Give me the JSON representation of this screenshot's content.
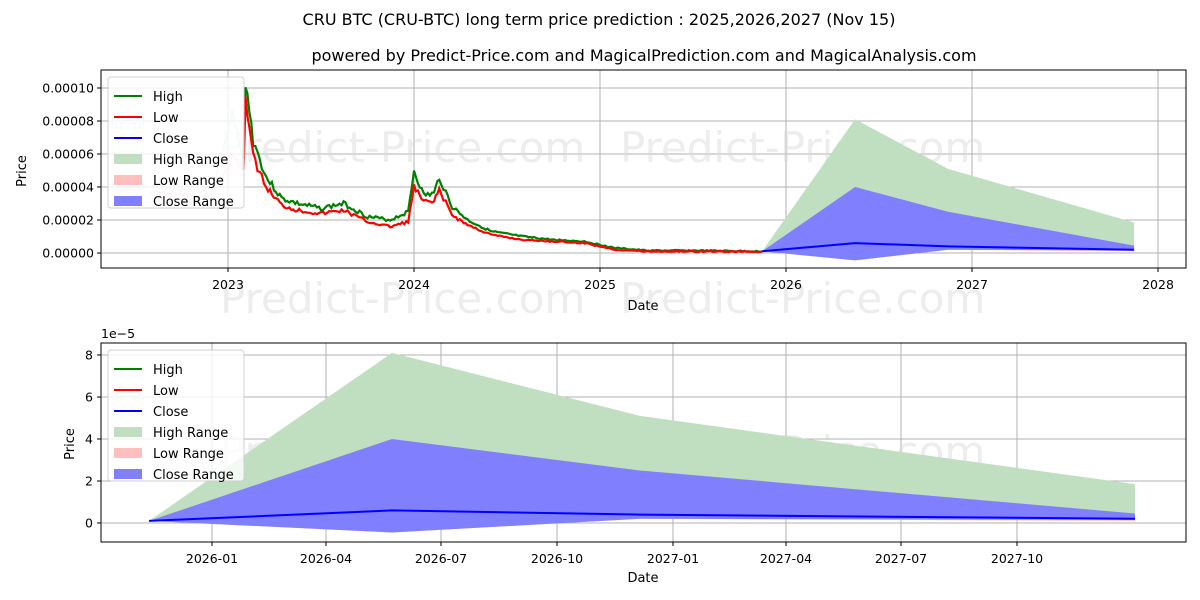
{
  "header": {
    "title": "CRU BTC (CRU-BTC) long term price prediction : 2025,2026,2027 (Nov 15)",
    "subtitle": "powered by Predict-Price.com and MagicalPrediction.com and MagicalAnalysis.com"
  },
  "watermark": "Predict-Price.com",
  "colors": {
    "high": "#008000",
    "low": "#ff0000",
    "close": "#0000ff",
    "high_range": "#c0dfc0",
    "low_range": "#ffbfbf",
    "close_range": "#8080ff",
    "grid": "#b0b0b0"
  },
  "legend": [
    "High",
    "Low",
    "Close",
    "High Range",
    "Low Range",
    "Close Range"
  ],
  "chart_data": [
    {
      "type": "line",
      "title": "CRU BTC (CRU-BTC) long term price prediction : 2025,2026,2027 (Nov 15)",
      "xlabel": "Date",
      "ylabel": "Price",
      "x_ticks": [
        "2023",
        "2024",
        "2025",
        "2026",
        "2027",
        "2028"
      ],
      "y_ticks": [
        "0.00000",
        "0.00002",
        "0.00004",
        "0.00006",
        "0.00008",
        "0.00010"
      ],
      "ylim": [
        -9e-06,
        0.000111
      ],
      "grid": true,
      "legend_position": "upper left",
      "legend": [
        "High",
        "Low",
        "Close",
        "High Range",
        "Low Range",
        "Close Range"
      ],
      "history": {
        "x": [
          "2022-08",
          "2022-10",
          "2022-12",
          "2023-01-10",
          "2023-02-01",
          "2023-02-05",
          "2023-02-20",
          "2023-03-15",
          "2023-04-15",
          "2023-05-15",
          "2023-07-01",
          "2023-08-15",
          "2023-10-01",
          "2023-11-15",
          "2023-12-20",
          "2024-01-01",
          "2024-01-20",
          "2024-02-10",
          "2024-02-20",
          "2024-03-15",
          "2024-04-15",
          "2024-06-01",
          "2024-08-01",
          "2024-10-01",
          "2024-12-01",
          "2025-02-01",
          "2025-04-01",
          "2025-07-01",
          "2025-11-15"
        ],
        "high": [
          4e-05,
          3.8e-05,
          3.7e-05,
          8.5e-05,
          5.6e-05,
          0.000105,
          6.8e-05,
          4.6e-05,
          3.3e-05,
          3e-05,
          2.7e-05,
          3e-05,
          2.2e-05,
          2e-05,
          2.5e-05,
          5e-05,
          3.5e-05,
          3.6e-05,
          4.6e-05,
          2.8e-05,
          2e-05,
          1.3e-05,
          1e-05,
          8e-06,
          7e-06,
          3e-06,
          1.5e-06,
          1.5e-06,
          1e-06
        ],
        "low": [
          3.7e-05,
          3.5e-05,
          3.4e-05,
          6e-05,
          5e-05,
          9.5e-05,
          5.8e-05,
          4e-05,
          2.9e-05,
          2.6e-05,
          2.4e-05,
          2.6e-05,
          1.9e-05,
          1.6e-05,
          1.9e-05,
          4e-05,
          3.1e-05,
          3.1e-05,
          3.8e-05,
          2.3e-05,
          1.7e-05,
          1.1e-05,
          8e-06,
          7e-06,
          6e-06,
          2e-06,
          1e-06,
          1e-06,
          8e-07
        ]
      },
      "forecast": {
        "x": [
          "2025-11-15",
          "2026-05-15",
          "2026-11-15",
          "2027-11-15"
        ],
        "high_range_top": [
          1e-06,
          8.1e-05,
          5.1e-05,
          1.85e-05
        ],
        "close_range_top": [
          1e-06,
          4e-05,
          2.5e-05,
          4.5e-06
        ],
        "close": [
          1e-06,
          6e-06,
          4e-06,
          2e-06
        ],
        "close_range_bottom": [
          1e-06,
          -4.5e-06,
          2e-06,
          1.5e-06
        ],
        "low_range_top": [
          1e-06,
          1e-06,
          4e-06,
          2e-06
        ],
        "low_range_bottom": [
          1e-06,
          -4.5e-06,
          2e-06,
          1e-06
        ]
      }
    },
    {
      "type": "area",
      "title": "",
      "xlabel": "Date",
      "ylabel": "Price",
      "y_offset_label": "1e−5",
      "x_ticks": [
        "2026-01",
        "2026-04",
        "2026-07",
        "2026-10",
        "2027-01",
        "2027-04",
        "2027-07",
        "2027-10"
      ],
      "y_ticks": [
        "0",
        "2",
        "4",
        "6",
        "8"
      ],
      "ylim": [
        -0.9,
        8.6
      ],
      "grid": true,
      "legend_position": "upper left",
      "legend": [
        "High",
        "Low",
        "Close",
        "High Range",
        "Low Range",
        "Close Range"
      ],
      "x": [
        "2025-11-15",
        "2026-05-15",
        "2026-11-15",
        "2027-11-15"
      ],
      "series": [
        {
          "name": "High Range (top)",
          "values": [
            0.1,
            8.1,
            5.1,
            1.85
          ]
        },
        {
          "name": "Close Range (top)",
          "values": [
            0.1,
            4.0,
            2.5,
            0.45
          ]
        },
        {
          "name": "Close",
          "values": [
            0.1,
            0.6,
            0.4,
            0.2
          ]
        },
        {
          "name": "Low Range (top)",
          "values": [
            0.1,
            0.1,
            0.4,
            0.2
          ]
        },
        {
          "name": "Close Range (bottom)",
          "values": [
            0.1,
            -0.45,
            0.2,
            0.15
          ]
        },
        {
          "name": "Low Range (bottom)",
          "values": [
            0.1,
            -0.45,
            0.2,
            0.1
          ]
        }
      ]
    }
  ]
}
